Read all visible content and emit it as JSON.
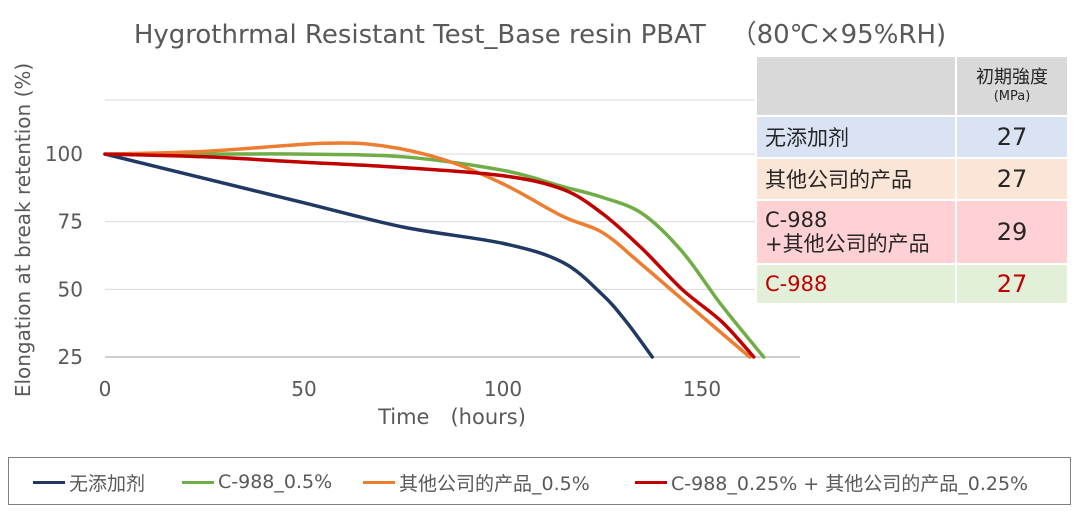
{
  "title": "Hygrothrmal Resistant Test_Base resin PBAT   （80℃×95%RH)",
  "chart_data": {
    "type": "line",
    "title": "Hygrothrmal Resistant Test_Base resin PBAT   （80℃×95%RH)",
    "xlabel": "Time　(hours)",
    "ylabel": "Elongation at break retention (%)",
    "xlim": [
      0,
      175
    ],
    "ylim": [
      25,
      120
    ],
    "xticks": [
      0,
      50,
      100,
      150
    ],
    "yticks": [
      25,
      50,
      75,
      100
    ],
    "grid": "horizontal",
    "legend_position": "bottom",
    "series": [
      {
        "name": "无添加剂",
        "color": "#203864",
        "x": [
          0,
          25,
          50,
          75,
          100,
          115,
          125,
          131,
          137.5
        ],
        "y": [
          100,
          91,
          82,
          73,
          67,
          60,
          48,
          38,
          25
        ]
      },
      {
        "name": "C-988_0.5%",
        "color": "#70ad47",
        "x": [
          0,
          25,
          50,
          75,
          100,
          115,
          125,
          135,
          145,
          155,
          165.5
        ],
        "y": [
          100,
          100,
          100,
          99,
          94,
          88,
          84,
          78,
          64,
          44,
          25
        ]
      },
      {
        "name": "其他公司的产品_0.5%",
        "color": "#ed7d31",
        "x": [
          0,
          25,
          55,
          70,
          85,
          100,
          115,
          125,
          135,
          150,
          162
        ],
        "y": [
          100,
          101,
          104,
          103,
          98,
          89,
          77,
          71,
          59,
          40,
          25
        ]
      },
      {
        "name": "C-988_0.25% + 其他公司的产品_0.25%",
        "color": "#c00000",
        "x": [
          0,
          25,
          50,
          75,
          100,
          115,
          125,
          135,
          145,
          155,
          163
        ],
        "y": [
          100,
          99,
          97,
          95,
          92,
          87,
          78,
          65,
          50,
          38,
          25
        ]
      }
    ]
  },
  "table": {
    "header": {
      "line1": "初期強度",
      "line2": "(MPa)"
    },
    "rows": [
      {
        "label": "无添加剂",
        "value": "27",
        "bg": "#dae3f3",
        "color": "#262626"
      },
      {
        "label": "其他公司的产品",
        "value": "27",
        "bg": "#fbe5d6",
        "color": "#262626"
      },
      {
        "label_line1": "C-988",
        "label_line2": "+其他公司的产品",
        "value": "29",
        "bg": "#ffd1d5",
        "color": "#262626"
      },
      {
        "label": "C-988",
        "value": "27",
        "bg": "#e2f0d9",
        "color": "#c00000"
      }
    ]
  }
}
